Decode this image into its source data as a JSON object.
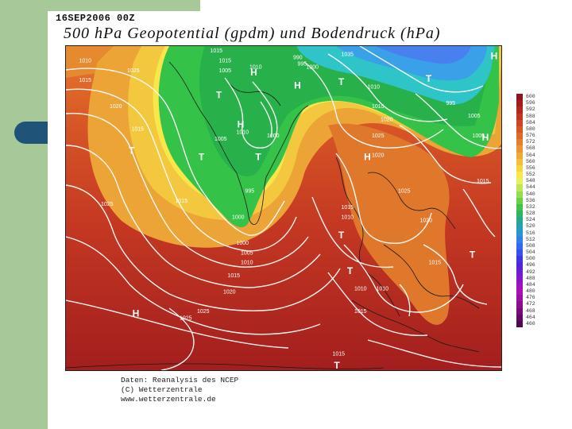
{
  "slide": {
    "timestamp": "16SEP2006 00Z",
    "title": "500 hPa Geopotential (gpdm) und Bodendruck (hPa)",
    "credits": [
      "Daten: Reanalysis des NCEP",
      "(C) Wetterzentrale",
      "www.wetterzentrale.de"
    ],
    "colors": {
      "side_strip": "#a7c99a",
      "pill": "#1f5478"
    }
  },
  "map": {
    "type": "synoptic weather map",
    "field": "500 hPa geopotential (gpdm)",
    "isobars": "surface pressure (hPa)",
    "pressure_labels": [
      {
        "text": "1015",
        "fx": 0.33,
        "fy": 0.02
      },
      {
        "text": "1015",
        "fx": 0.35,
        "fy": 0.05
      },
      {
        "text": "1005",
        "fx": 0.35,
        "fy": 0.08
      },
      {
        "text": "1010",
        "fx": 0.42,
        "fy": 0.07
      },
      {
        "text": "1025",
        "fx": 0.14,
        "fy": 0.08
      },
      {
        "text": "1010",
        "fx": 0.03,
        "fy": 0.05
      },
      {
        "text": "1015",
        "fx": 0.03,
        "fy": 0.11
      },
      {
        "text": "1020",
        "fx": 0.1,
        "fy": 0.19
      },
      {
        "text": "1015",
        "fx": 0.15,
        "fy": 0.26
      },
      {
        "text": "1005",
        "fx": 0.34,
        "fy": 0.29
      },
      {
        "text": "1010",
        "fx": 0.39,
        "fy": 0.27
      },
      {
        "text": "1000",
        "fx": 0.46,
        "fy": 0.28
      },
      {
        "text": "990",
        "fx": 0.52,
        "fy": 0.04
      },
      {
        "text": "995",
        "fx": 0.53,
        "fy": 0.06
      },
      {
        "text": "1000",
        "fx": 0.55,
        "fy": 0.07
      },
      {
        "text": "1035",
        "fx": 0.63,
        "fy": 0.03
      },
      {
        "text": "1010",
        "fx": 0.69,
        "fy": 0.13
      },
      {
        "text": "1015",
        "fx": 0.7,
        "fy": 0.19
      },
      {
        "text": "1020",
        "fx": 0.72,
        "fy": 0.23
      },
      {
        "text": "1025",
        "fx": 0.7,
        "fy": 0.28
      },
      {
        "text": "1020",
        "fx": 0.7,
        "fy": 0.34
      },
      {
        "text": "995",
        "fx": 0.87,
        "fy": 0.18
      },
      {
        "text": "1005",
        "fx": 0.92,
        "fy": 0.22
      },
      {
        "text": "1005",
        "fx": 0.93,
        "fy": 0.28
      },
      {
        "text": "1015",
        "fx": 0.94,
        "fy": 0.42
      },
      {
        "text": "1025",
        "fx": 0.08,
        "fy": 0.49
      },
      {
        "text": "1015",
        "fx": 0.25,
        "fy": 0.48
      },
      {
        "text": "995",
        "fx": 0.41,
        "fy": 0.45
      },
      {
        "text": "1000",
        "fx": 0.38,
        "fy": 0.53
      },
      {
        "text": "1015",
        "fx": 0.63,
        "fy": 0.5
      },
      {
        "text": "1010",
        "fx": 0.63,
        "fy": 0.53
      },
      {
        "text": "1025",
        "fx": 0.76,
        "fy": 0.45
      },
      {
        "text": "1020",
        "fx": 0.81,
        "fy": 0.54
      },
      {
        "text": "1000",
        "fx": 0.39,
        "fy": 0.61
      },
      {
        "text": "1005",
        "fx": 0.4,
        "fy": 0.64
      },
      {
        "text": "1010",
        "fx": 0.4,
        "fy": 0.67
      },
      {
        "text": "1015",
        "fx": 0.37,
        "fy": 0.71
      },
      {
        "text": "1020",
        "fx": 0.36,
        "fy": 0.76
      },
      {
        "text": "1015",
        "fx": 0.83,
        "fy": 0.67
      },
      {
        "text": "1010",
        "fx": 0.66,
        "fy": 0.75
      },
      {
        "text": "1010",
        "fx": 0.71,
        "fy": 0.75
      },
      {
        "text": "1015",
        "fx": 0.66,
        "fy": 0.82
      },
      {
        "text": "1025",
        "fx": 0.26,
        "fy": 0.84
      },
      {
        "text": "1025",
        "fx": 0.3,
        "fy": 0.82
      },
      {
        "text": "1015",
        "fx": 0.61,
        "fy": 0.95
      }
    ],
    "systems": [
      {
        "symbol": "H",
        "fx": 0.43,
        "fy": 0.09
      },
      {
        "symbol": "H",
        "fx": 0.53,
        "fy": 0.13
      },
      {
        "symbol": "T",
        "fx": 0.35,
        "fy": 0.16
      },
      {
        "symbol": "T",
        "fx": 0.63,
        "fy": 0.12
      },
      {
        "symbol": "T",
        "fx": 0.83,
        "fy": 0.11
      },
      {
        "symbol": "H",
        "fx": 0.98,
        "fy": 0.04
      },
      {
        "symbol": "H",
        "fx": 0.4,
        "fy": 0.25
      },
      {
        "symbol": "T",
        "fx": 0.31,
        "fy": 0.35
      },
      {
        "symbol": "T",
        "fx": 0.44,
        "fy": 0.35
      },
      {
        "symbol": "T",
        "fx": 0.15,
        "fy": 0.33
      },
      {
        "symbol": "H",
        "fx": 0.96,
        "fy": 0.29
      },
      {
        "symbol": "H",
        "fx": 0.69,
        "fy": 0.35
      },
      {
        "symbol": "T",
        "fx": 0.63,
        "fy": 0.59
      },
      {
        "symbol": "T",
        "fx": 0.65,
        "fy": 0.7
      },
      {
        "symbol": "T",
        "fx": 0.93,
        "fy": 0.65
      },
      {
        "symbol": "H",
        "fx": 0.16,
        "fy": 0.83
      },
      {
        "symbol": "T",
        "fx": 0.62,
        "fy": 0.99
      }
    ]
  },
  "legend": {
    "values": [
      "600",
      "596",
      "592",
      "588",
      "584",
      "580",
      "576",
      "572",
      "568",
      "564",
      "560",
      "556",
      "552",
      "548",
      "544",
      "540",
      "536",
      "532",
      "528",
      "524",
      "520",
      "516",
      "512",
      "508",
      "504",
      "500",
      "496",
      "492",
      "488",
      "484",
      "480",
      "476",
      "472",
      "468",
      "464",
      "460"
    ],
    "colors": [
      "#8c1420",
      "#a21e1e",
      "#b22820",
      "#c23622",
      "#cf4424",
      "#d85626",
      "#e06a2a",
      "#e67e2e",
      "#ea9432",
      "#eeaa36",
      "#f2c03c",
      "#f6d442",
      "#fae84a",
      "#e8f05a",
      "#bfe656",
      "#96dc50",
      "#6ccf4a",
      "#44c248",
      "#2eb462",
      "#28a88a",
      "#26a0b4",
      "#2a94d2",
      "#3080e6",
      "#3468f0",
      "#3850ec",
      "#4036e0",
      "#5226d6",
      "#6a1ed0",
      "#8418c8",
      "#9a14c0",
      "#a812b4",
      "#9c10a0",
      "#8a0e8a",
      "#760c76",
      "#620a62",
      "#500850"
    ]
  }
}
